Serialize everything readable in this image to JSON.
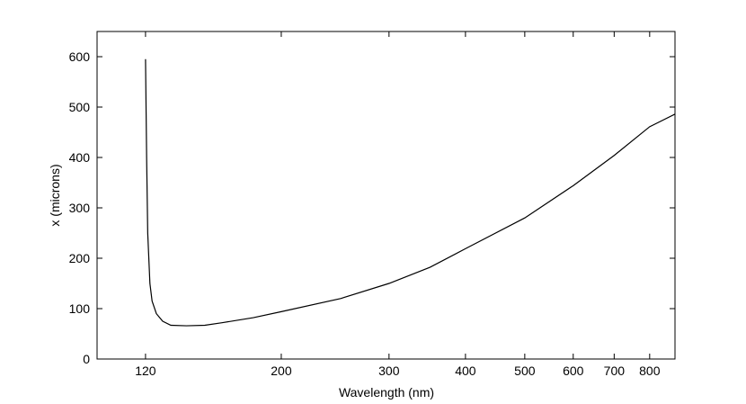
{
  "chart_data": {
    "type": "line",
    "x_label": "Wavelength (nm)",
    "y_label": "x (microns)",
    "x": [
      120,
      120.5,
      121,
      122,
      123,
      125,
      128,
      132,
      140,
      150,
      160,
      180,
      200,
      250,
      300,
      350,
      400,
      500,
      600,
      700,
      800,
      880
    ],
    "series": [
      {
        "color": "#000000",
        "values": [
          595,
          400,
          250,
          150,
          115,
          90,
          75,
          67,
          66,
          67,
          72,
          82,
          94,
          120,
          150,
          182,
          219,
          280,
          344,
          404,
          461,
          486
        ]
      }
    ],
    "xscale": "log",
    "xlim": [
      100,
      880
    ],
    "xticks": [
      120,
      200,
      300,
      400,
      500,
      600,
      700,
      800
    ],
    "ylim": [
      0,
      650
    ],
    "yticks": [
      0,
      100,
      200,
      300,
      400,
      500,
      600
    ],
    "grid": false
  }
}
